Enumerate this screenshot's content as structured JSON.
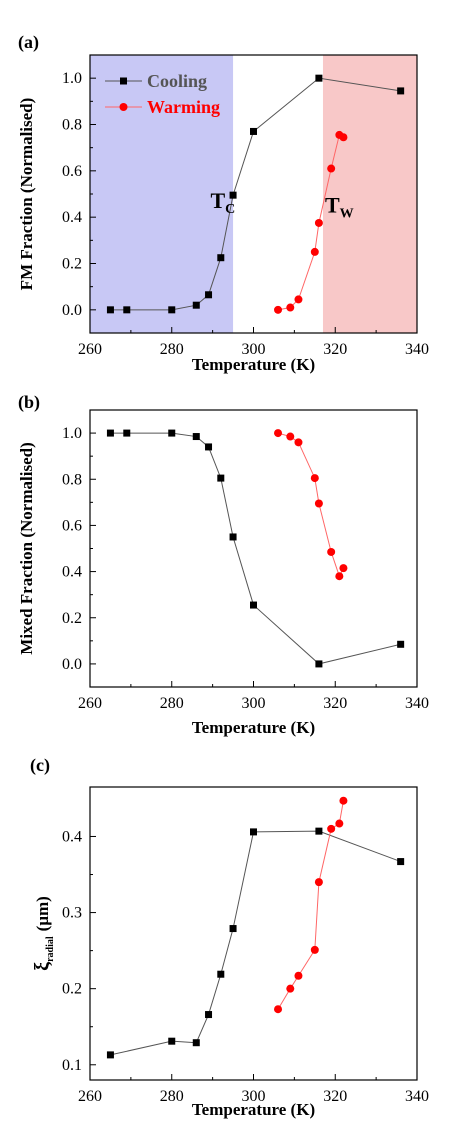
{
  "colors": {
    "cooling": "#000000",
    "warming": "#ff0000",
    "cooling_line": "#555555",
    "warming_line": "#ff6666",
    "band_left": "#c8c8f5",
    "band_right": "#f8c8c8"
  },
  "chart_data": [
    {
      "type": "line",
      "panel_label": "(a)",
      "xlabel": "Temperature (K)",
      "ylabel": "FM Fraction (Normalised)",
      "xlim": [
        260,
        340
      ],
      "ylim": [
        -0.1,
        1.1
      ],
      "xticks": [
        260,
        280,
        300,
        320,
        340
      ],
      "yticks": [
        0.0,
        0.2,
        0.4,
        0.6,
        0.8,
        1.0
      ],
      "ytick_labels": [
        "0.0",
        "0.2",
        "0.4",
        "0.6",
        "0.8",
        "1.0"
      ],
      "legend": {
        "placement": "top-left",
        "entries": [
          "Cooling",
          "Warming"
        ]
      },
      "shaded_regions": [
        {
          "x0": 260,
          "x1": 295,
          "color_key": "band_left"
        },
        {
          "x0": 317,
          "x1": 340,
          "color_key": "band_right"
        }
      ],
      "annotations": [
        {
          "text": "T",
          "sub": "C",
          "x": 292.5,
          "y": 0.44
        },
        {
          "text": "T",
          "sub": "W",
          "x": 321,
          "y": 0.42
        }
      ],
      "series": [
        {
          "name": "Cooling",
          "marker": "square",
          "x": [
            265,
            269,
            280,
            286,
            289,
            292,
            295,
            300,
            316,
            336
          ],
          "y": [
            0.0,
            0.0,
            0.0,
            0.02,
            0.065,
            0.225,
            0.495,
            0.77,
            1.0,
            0.945
          ]
        },
        {
          "name": "Warming",
          "marker": "circle",
          "x": [
            306,
            309,
            311,
            315,
            316,
            319,
            321,
            322
          ],
          "y": [
            0.0,
            0.01,
            0.045,
            0.25,
            0.375,
            0.61,
            0.755,
            0.745
          ]
        }
      ]
    },
    {
      "type": "line",
      "panel_label": "(b)",
      "xlabel": "Temperature (K)",
      "ylabel": "Mixed Fraction (Normalised)",
      "xlim": [
        260,
        340
      ],
      "ylim": [
        -0.1,
        1.1
      ],
      "xticks": [
        260,
        280,
        300,
        320,
        340
      ],
      "yticks": [
        0.0,
        0.2,
        0.4,
        0.6,
        0.8,
        1.0
      ],
      "ytick_labels": [
        "0.0",
        "0.2",
        "0.4",
        "0.6",
        "0.8",
        "1.0"
      ],
      "series": [
        {
          "marker": "square",
          "x": [
            265,
            269,
            280,
            286,
            289,
            292,
            295,
            300,
            316,
            336
          ],
          "y": [
            1.0,
            1.0,
            1.0,
            0.985,
            0.94,
            0.805,
            0.55,
            0.255,
            0.0,
            0.085
          ]
        },
        {
          "marker": "circle",
          "x": [
            306,
            309,
            311,
            315,
            316,
            319,
            321,
            322
          ],
          "y": [
            1.0,
            0.985,
            0.96,
            0.805,
            0.695,
            0.485,
            0.38,
            0.415
          ]
        }
      ]
    },
    {
      "type": "line",
      "panel_label": "(c)",
      "xlabel": "Temperature (K)",
      "ylabel": "ξ",
      "ylabel_sub": "radial",
      "ylabel_unit": "(μm)",
      "xlim": [
        260,
        340
      ],
      "ylim": [
        0.08,
        0.465
      ],
      "xticks": [
        260,
        280,
        300,
        320,
        340
      ],
      "yticks": [
        0.1,
        0.2,
        0.3,
        0.4
      ],
      "ytick_labels": [
        "0.1",
        "0.2",
        "0.3",
        "0.4"
      ],
      "series": [
        {
          "marker": "square",
          "x": [
            265,
            280,
            286,
            289,
            292,
            295,
            300,
            316,
            336
          ],
          "y": [
            0.113,
            0.131,
            0.129,
            0.166,
            0.219,
            0.279,
            0.406,
            0.407,
            0.367
          ]
        },
        {
          "marker": "circle",
          "x": [
            306,
            309,
            311,
            315,
            316,
            319,
            321,
            322
          ],
          "y": [
            0.173,
            0.2,
            0.217,
            0.251,
            0.34,
            0.41,
            0.417,
            0.447
          ]
        }
      ]
    }
  ]
}
